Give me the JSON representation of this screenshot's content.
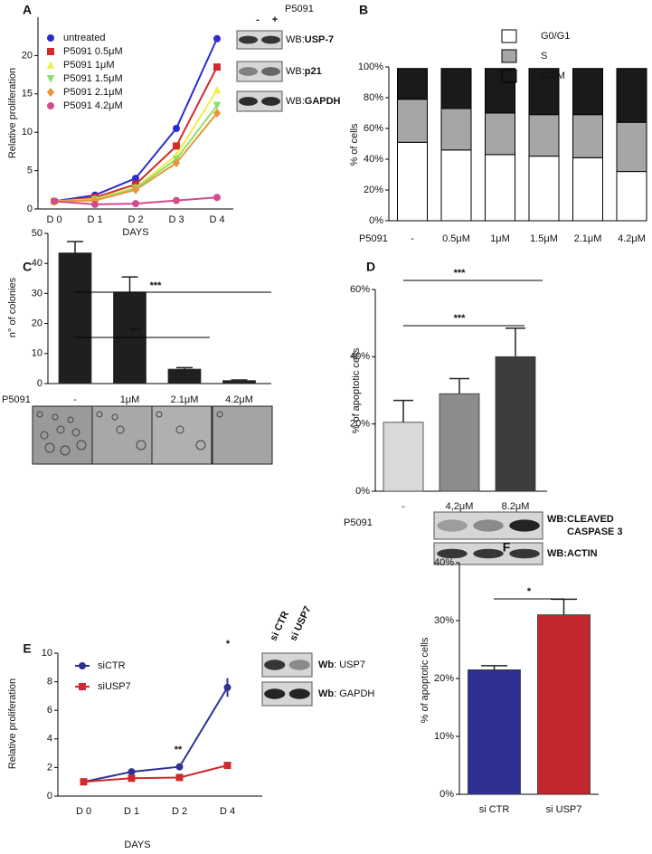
{
  "chart_data": [
    {
      "label": "A",
      "type": "line",
      "categories": [
        "D 0",
        "D 1",
        "D 2",
        "D 3",
        "D 4"
      ],
      "x_label": "DAYS",
      "y_label": "Relative proliferation",
      "ylim": [
        0,
        25
      ],
      "yticks": [
        0,
        5,
        10,
        15,
        20
      ],
      "series": [
        {
          "name": "untreated",
          "color": "#2b2bd0",
          "marker": "circle",
          "values": [
            1,
            1.8,
            4,
            10.5,
            22.2
          ]
        },
        {
          "name": "P5091 0.5μM",
          "color": "#d42a2a",
          "marker": "square",
          "values": [
            1,
            1.5,
            3.2,
            8.2,
            18.5
          ]
        },
        {
          "name": "P5091 1μM",
          "color": "#f2ee48",
          "marker": "triangle",
          "values": [
            1,
            1.3,
            2.8,
            7,
            15.5
          ]
        },
        {
          "name": "P5091 1.5μM",
          "color": "#8ee06a",
          "marker": "triangle-down",
          "values": [
            1,
            1.2,
            2.7,
            6.5,
            13.5
          ]
        },
        {
          "name": "P5091 2.1μM",
          "color": "#e8973a",
          "marker": "diamond",
          "values": [
            1,
            1.1,
            2.5,
            6,
            12.5
          ]
        },
        {
          "name": "P5091 4.2μM",
          "color": "#d44a8a",
          "marker": "circle",
          "values": [
            1,
            0.6,
            0.7,
            1.1,
            1.5
          ]
        }
      ],
      "blot": {
        "header": "P5091",
        "lanes": [
          "-",
          "+"
        ],
        "rows": [
          [
            "WB:",
            "USP-7"
          ],
          [
            "WB:",
            "p21"
          ],
          [
            "WB:",
            "GAPDH"
          ]
        ]
      }
    },
    {
      "label": "B",
      "type": "stacked_bar",
      "categories": [
        "-",
        "0.5μM",
        "1μM",
        "1.5μM",
        "2.1μM",
        "4.2μM"
      ],
      "category_label": "P5091",
      "y_label": "% of cells",
      "ylim": [
        0,
        100
      ],
      "yticks": [
        {
          "value": 0,
          "label": "0%"
        },
        {
          "value": 20,
          "label": "20%"
        },
        {
          "value": 40,
          "label": "40%"
        },
        {
          "value": 60,
          "label": "60%"
        },
        {
          "value": 80,
          "label": "80%"
        },
        {
          "value": 100,
          "label": "100%"
        }
      ],
      "series": [
        {
          "name": "G0/G1",
          "color": "#ffffff",
          "values": [
            51,
            46,
            43,
            42,
            41,
            32
          ]
        },
        {
          "name": "S",
          "color": "#a6a6a6",
          "values": [
            28,
            27,
            27,
            27,
            28,
            32
          ]
        },
        {
          "name": "G2/M",
          "color": "#1a1a1a",
          "values": [
            20,
            26,
            29,
            30,
            30,
            35
          ]
        }
      ]
    },
    {
      "label": "C",
      "type": "bar",
      "categories": [
        "-",
        "1μM",
        "2.1μM",
        "4.2μM"
      ],
      "category_label": "P5091",
      "y_label": "n° of colonies",
      "ylim": [
        0,
        50
      ],
      "yticks": [
        0,
        10,
        20,
        30,
        40,
        50
      ],
      "color": "#1f1f1f",
      "values": [
        43.5,
        30.5,
        4.8,
        1
      ],
      "errors": [
        3.8,
        5,
        0.5,
        0.2
      ],
      "annotations": [
        "***",
        "***"
      ]
    },
    {
      "label": "D",
      "type": "bar",
      "categories": [
        "-",
        "4,2μM",
        "8.2μM"
      ],
      "category_label": "P5091",
      "y_label": "% of apoptotic cells",
      "ylim": [
        0,
        60
      ],
      "yticks": [
        {
          "value": 0,
          "label": "0%"
        },
        {
          "value": 20,
          "label": "20%"
        },
        {
          "value": 40,
          "label": "40%"
        },
        {
          "value": 60,
          "label": "60%"
        }
      ],
      "colors": [
        "#d9d9d9",
        "#8c8c8c",
        "#3c3c3c"
      ],
      "values": [
        20.5,
        29,
        40
      ],
      "errors": [
        6.5,
        4.5,
        8.5
      ],
      "annotations": [
        "***",
        "***"
      ],
      "blot": {
        "rows": [
          [
            "WB:",
            "CLEAVED",
            "CASPASE 3"
          ],
          [
            "WB:",
            "ACTIN"
          ]
        ]
      }
    },
    {
      "label": "E",
      "type": "line",
      "categories": [
        "D 0",
        "D 1",
        "D 2",
        "D 4"
      ],
      "x_label": "DAYS",
      "y_label": "Relative proliferation",
      "ylim": [
        0,
        10
      ],
      "yticks": [
        0,
        2,
        4,
        6,
        8,
        10
      ],
      "series": [
        {
          "name": "siCTR",
          "color": "#2e3192",
          "marker": "circle",
          "values": [
            1,
            1.7,
            2.05,
            7.6
          ],
          "errors": [
            0.05,
            0.1,
            0.05,
            0.65
          ]
        },
        {
          "name": "siUSP7",
          "color": "#d0282d",
          "marker": "square",
          "values": [
            1,
            1.25,
            1.3,
            2.15
          ]
        }
      ],
      "annotations": [
        "**",
        "*"
      ],
      "blot": {
        "lanes": [
          "si CTR",
          "si USP7"
        ],
        "rows": [
          [
            "Wb",
            ": USP7"
          ],
          [
            "Wb",
            ": GAPDH"
          ]
        ]
      }
    },
    {
      "label": "F",
      "type": "bar",
      "categories": [
        "si CTR",
        "si USP7"
      ],
      "y_label": "% of apoptotic cells",
      "ylim": [
        0,
        40
      ],
      "yticks": [
        {
          "value": 0,
          "label": "0%"
        },
        {
          "value": 10,
          "label": "10%"
        },
        {
          "value": 20,
          "label": "20%"
        },
        {
          "value": 30,
          "label": "30%"
        },
        {
          "value": 40,
          "label": "40%"
        }
      ],
      "colors": [
        "#2e3192",
        "#c1272d"
      ],
      "values": [
        21.5,
        31
      ],
      "errors": [
        0.7,
        2.7
      ],
      "annotations": [
        "*"
      ]
    }
  ]
}
